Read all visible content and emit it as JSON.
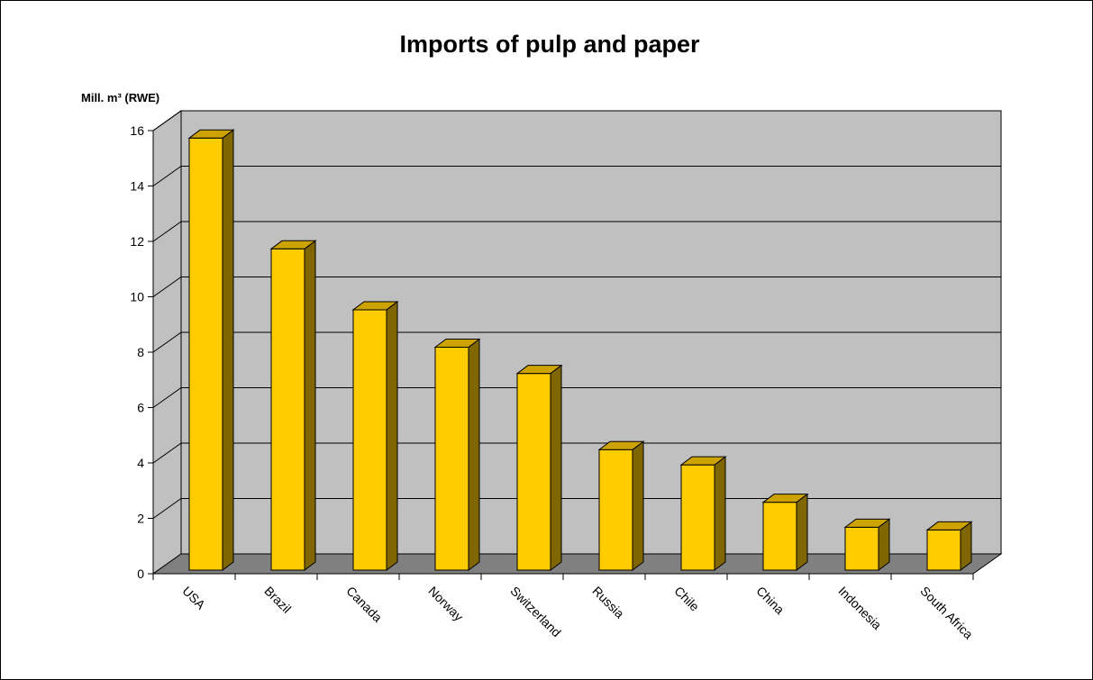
{
  "chart_data": {
    "type": "bar",
    "title": "Imports of pulp and paper",
    "ylabel": "Mill. m³ (RWE)",
    "xlabel": "",
    "categories": [
      "USA",
      "Brazil",
      "Canada",
      "Norway",
      "Switzerland",
      "Russia",
      "Chile",
      "China",
      "Indonesia",
      "South Africa"
    ],
    "values": [
      15.6,
      11.6,
      9.4,
      8.05,
      7.1,
      4.35,
      3.8,
      2.45,
      1.55,
      1.45
    ],
    "ylim": [
      0,
      16
    ],
    "yticks": [
      0,
      2,
      4,
      6,
      8,
      10,
      12,
      14,
      16
    ],
    "grid": true,
    "legend": "none",
    "colors": {
      "bar_front": "#FFCC00",
      "bar_side": "#806600",
      "bar_top": "#CCA300",
      "back_wall": "#C0C0C0",
      "side_wall": "#C0C0C0",
      "floor": "#808080"
    }
  }
}
